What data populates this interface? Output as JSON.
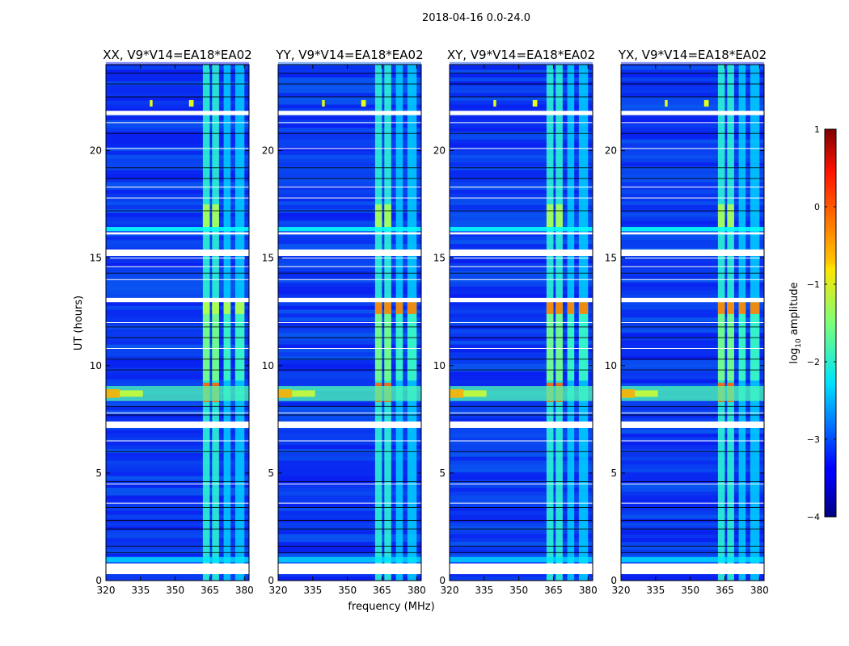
{
  "figure_title": "2018-04-16 0.0-24.0",
  "shared_xlabel": "frequency (MHz)",
  "shared_ylabel": "UT (hours)",
  "chart_data": [
    {
      "type": "heatmap",
      "title": "XX, V9*V14=EA18*EA02",
      "xlim": [
        320,
        382
      ],
      "ylim": [
        0,
        24
      ],
      "xticks": [
        320,
        335,
        350,
        365,
        380
      ],
      "yticks": [
        0,
        5,
        10,
        15,
        20
      ],
      "bright_freq_bands_mhz": [
        [
          362,
          365
        ],
        [
          366,
          369
        ],
        [
          371,
          374
        ],
        [
          376,
          380
        ]
      ],
      "flagged_gaps_ut": [
        [
          0.3,
          0.8
        ],
        [
          7.1,
          7.4
        ],
        [
          12.95,
          13.15
        ],
        [
          15.1,
          15.4
        ],
        [
          16.1,
          16.2
        ],
        [
          21.65,
          21.85
        ]
      ],
      "event_ut": 8.7
    },
    {
      "type": "heatmap",
      "title": "YY, V9*V14=EA18*EA02",
      "xlim": [
        320,
        382
      ],
      "ylim": [
        0,
        24
      ],
      "xticks": [
        320,
        335,
        350,
        365,
        380
      ],
      "yticks": [
        0,
        5,
        10,
        15,
        20
      ],
      "bright_freq_bands_mhz": [
        [
          362,
          365
        ],
        [
          366,
          369
        ],
        [
          371,
          374
        ],
        [
          376,
          380
        ]
      ],
      "flagged_gaps_ut": [
        [
          0.3,
          0.8
        ],
        [
          7.1,
          7.4
        ],
        [
          12.95,
          13.15
        ],
        [
          15.1,
          15.4
        ],
        [
          16.1,
          16.2
        ],
        [
          21.65,
          21.85
        ]
      ],
      "event_ut": 8.7
    },
    {
      "type": "heatmap",
      "title": "XY, V9*V14=EA18*EA02",
      "xlim": [
        320,
        382
      ],
      "ylim": [
        0,
        24
      ],
      "xticks": [
        320,
        335,
        350,
        365,
        380
      ],
      "yticks": [
        0,
        5,
        10,
        15,
        20
      ],
      "bright_freq_bands_mhz": [
        [
          362,
          365
        ],
        [
          366,
          369
        ],
        [
          371,
          374
        ],
        [
          376,
          380
        ]
      ],
      "flagged_gaps_ut": [
        [
          0.3,
          0.8
        ],
        [
          7.1,
          7.4
        ],
        [
          12.95,
          13.15
        ],
        [
          15.1,
          15.4
        ],
        [
          16.1,
          16.2
        ],
        [
          21.65,
          21.85
        ]
      ],
      "event_ut": 8.7
    },
    {
      "type": "heatmap",
      "title": "YX, V9*V14=EA18*EA02",
      "xlim": [
        320,
        382
      ],
      "ylim": [
        0,
        24
      ],
      "xticks": [
        320,
        335,
        350,
        365,
        380
      ],
      "yticks": [
        0,
        5,
        10,
        15,
        20
      ],
      "bright_freq_bands_mhz": [
        [
          362,
          365
        ],
        [
          366,
          369
        ],
        [
          371,
          374
        ],
        [
          376,
          380
        ]
      ],
      "flagged_gaps_ut": [
        [
          0.3,
          0.8
        ],
        [
          7.1,
          7.4
        ],
        [
          12.95,
          13.15
        ],
        [
          15.1,
          15.4
        ],
        [
          16.1,
          16.2
        ],
        [
          21.65,
          21.85
        ]
      ],
      "event_ut": 8.7
    }
  ],
  "colorbar": {
    "label_prefix": "log",
    "label_subscript": "10",
    "label_suffix": " amplitude",
    "ticks": [
      1,
      0,
      -1,
      -2,
      -3,
      -4
    ],
    "tick_labels": [
      "1",
      "0",
      "−1",
      "−2",
      "−3",
      "−4"
    ],
    "range": [
      -4,
      1
    ],
    "colormap": "jet"
  }
}
